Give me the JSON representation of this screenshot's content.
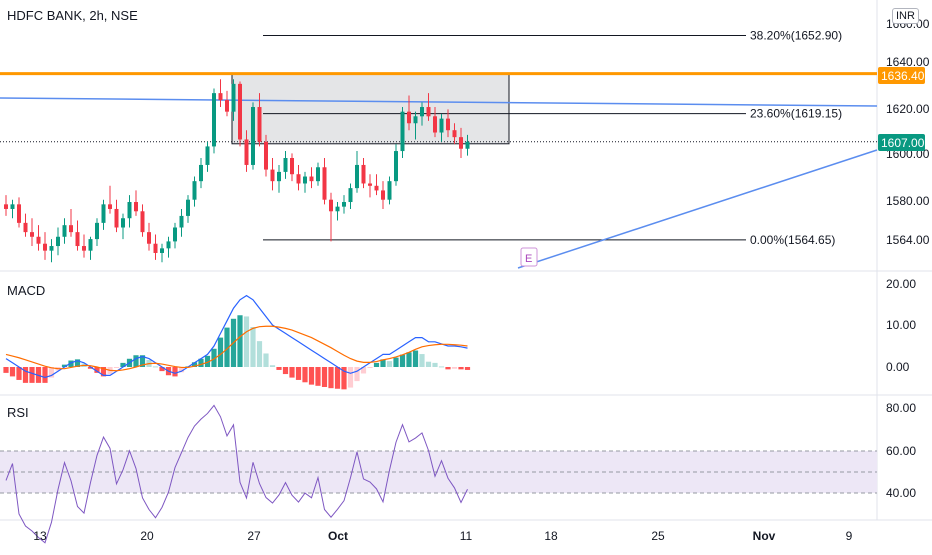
{
  "header": {
    "symbol_label": "HDFC BANK, 2h, NSE",
    "currency_badge": "INR"
  },
  "colors": {
    "up": "#089981",
    "down": "#f23645",
    "orange_line": "#ff9800",
    "trend_blue": "#5b8def",
    "macd_line": "#2962ff",
    "signal_line": "#ff6d00",
    "rsi_line": "#7e57c2",
    "rsi_band": "#ede7f6",
    "last_price_bg": "#089981"
  },
  "price_panel": {
    "y_ticks": [
      "1660.00",
      "1640.00",
      "1620.00",
      "1600.00",
      "1580.00",
      "1564.00"
    ],
    "last_price": "1607.00",
    "resistance_label": "1636.40",
    "fib_levels": [
      {
        "label": "38.20%(1652.90)",
        "value": 1652.9
      },
      {
        "label": "23.60%(1619.15)",
        "value": 1619.15
      },
      {
        "label": "0.00%(1564.65)",
        "value": 1564.65
      }
    ],
    "event_marker": "E"
  },
  "macd_panel": {
    "title": "MACD",
    "y_ticks": [
      "20.00",
      "10.00",
      "0.00"
    ]
  },
  "rsi_panel": {
    "title": "RSI",
    "y_ticks": [
      "80.00",
      "60.00",
      "40.00"
    ]
  },
  "x_axis": {
    "labels": [
      "13",
      "20",
      "27",
      "Oct",
      "11",
      "18",
      "25",
      "Nov",
      "9"
    ]
  },
  "chart_data": {
    "type": "candlestick",
    "title": "HDFC BANK, 2h, NSE",
    "ylim": [
      1555,
      1665
    ],
    "candles": [
      [
        1580,
        1584,
        1575,
        1578
      ],
      [
        1578,
        1582,
        1574,
        1580
      ],
      [
        1580,
        1583,
        1570,
        1572
      ],
      [
        1572,
        1576,
        1566,
        1568
      ],
      [
        1568,
        1574,
        1562,
        1566
      ],
      [
        1566,
        1571,
        1560,
        1563
      ],
      [
        1563,
        1568,
        1556,
        1560
      ],
      [
        1560,
        1565,
        1555,
        1562
      ],
      [
        1562,
        1570,
        1558,
        1566
      ],
      [
        1566,
        1574,
        1563,
        1571
      ],
      [
        1571,
        1578,
        1566,
        1568
      ],
      [
        1568,
        1573,
        1560,
        1562
      ],
      [
        1562,
        1567,
        1557,
        1560
      ],
      [
        1560,
        1566,
        1556,
        1565
      ],
      [
        1565,
        1574,
        1562,
        1572
      ],
      [
        1572,
        1582,
        1569,
        1580
      ],
      [
        1580,
        1588,
        1576,
        1578
      ],
      [
        1578,
        1582,
        1568,
        1570
      ],
      [
        1570,
        1576,
        1565,
        1574
      ],
      [
        1574,
        1584,
        1570,
        1581
      ],
      [
        1581,
        1586,
        1575,
        1577
      ],
      [
        1577,
        1580,
        1566,
        1568
      ],
      [
        1568,
        1572,
        1560,
        1563
      ],
      [
        1563,
        1567,
        1556,
        1559
      ],
      [
        1559,
        1563,
        1555,
        1561
      ],
      [
        1561,
        1566,
        1557,
        1564
      ],
      [
        1564,
        1572,
        1561,
        1570
      ],
      [
        1570,
        1578,
        1566,
        1575
      ],
      [
        1575,
        1584,
        1572,
        1582
      ],
      [
        1582,
        1592,
        1579,
        1590
      ],
      [
        1590,
        1600,
        1587,
        1597
      ],
      [
        1597,
        1607,
        1594,
        1605
      ],
      [
        1605,
        1630,
        1602,
        1628
      ],
      [
        1628,
        1634,
        1622,
        1625
      ],
      [
        1625,
        1629,
        1618,
        1620
      ],
      [
        1620,
        1634,
        1616,
        1632
      ],
      [
        1632,
        1633,
        1605,
        1608
      ],
      [
        1608,
        1612,
        1594,
        1597
      ],
      [
        1597,
        1624,
        1595,
        1622
      ],
      [
        1622,
        1628,
        1605,
        1607
      ],
      [
        1607,
        1610,
        1592,
        1595
      ],
      [
        1595,
        1600,
        1586,
        1590
      ],
      [
        1590,
        1597,
        1585,
        1594
      ],
      [
        1594,
        1603,
        1591,
        1600
      ],
      [
        1600,
        1602,
        1590,
        1593
      ],
      [
        1593,
        1597,
        1586,
        1589
      ],
      [
        1589,
        1594,
        1585,
        1592
      ],
      [
        1592,
        1596,
        1587,
        1590
      ],
      [
        1590,
        1598,
        1588,
        1596
      ],
      [
        1596,
        1600,
        1580,
        1582
      ],
      [
        1582,
        1585,
        1564,
        1577
      ],
      [
        1577,
        1581,
        1573,
        1579
      ],
      [
        1579,
        1584,
        1576,
        1581
      ],
      [
        1581,
        1589,
        1578,
        1587
      ],
      [
        1587,
        1603,
        1585,
        1597
      ],
      [
        1597,
        1600,
        1587,
        1589
      ],
      [
        1589,
        1593,
        1583,
        1588
      ],
      [
        1588,
        1593,
        1584,
        1586
      ],
      [
        1586,
        1590,
        1578,
        1582
      ],
      [
        1582,
        1592,
        1580,
        1590
      ],
      [
        1590,
        1606,
        1588,
        1603
      ],
      [
        1603,
        1622,
        1600,
        1620
      ],
      [
        1620,
        1627,
        1612,
        1615
      ],
      [
        1615,
        1620,
        1608,
        1618
      ],
      [
        1618,
        1624,
        1614,
        1622
      ],
      [
        1622,
        1628,
        1616,
        1618
      ],
      [
        1618,
        1622,
        1609,
        1611
      ],
      [
        1611,
        1619,
        1607,
        1617
      ],
      [
        1617,
        1621,
        1609,
        1612
      ],
      [
        1612,
        1615,
        1606,
        1609
      ],
      [
        1609,
        1613,
        1600,
        1604
      ],
      [
        1604,
        1610,
        1601,
        1607
      ]
    ],
    "resistance": 1636.4,
    "last_price": 1607.0,
    "macd": [
      2,
      1,
      0,
      -1,
      -1.5,
      -2,
      -2.5,
      -2,
      -1,
      0,
      1,
      1.5,
      1,
      0,
      -1,
      -2,
      -2,
      -1,
      0,
      1,
      2,
      2.5,
      2,
      1,
      0,
      -1,
      -1.5,
      -1,
      0,
      1,
      2,
      3,
      5,
      8,
      11,
      14,
      16,
      17,
      16,
      14,
      12,
      10,
      9,
      8,
      7,
      6,
      5,
      4,
      3,
      2,
      1,
      0,
      -1,
      -1.5,
      -1,
      0,
      1,
      2,
      3,
      3,
      4,
      5,
      6,
      7,
      7,
      6,
      6,
      5.5,
      5,
      5,
      4.8,
      4.5
    ],
    "signal": [
      3,
      2.6,
      2.2,
      1.7,
      1.2,
      0.7,
      0.2,
      -0.2,
      -0.4,
      -0.4,
      -0.1,
      0.2,
      0.4,
      0.3,
      0,
      -0.4,
      -0.8,
      -0.9,
      -0.7,
      -0.4,
      0,
      0.5,
      0.8,
      0.9,
      0.7,
      0.4,
      0.1,
      -0.1,
      -0.1,
      0.2,
      0.6,
      1.1,
      1.9,
      3,
      4.3,
      5.8,
      7.2,
      8.4,
      9.2,
      9.6,
      9.7,
      9.7,
      9.5,
      9.2,
      8.8,
      8.2,
      7.6,
      7,
      6.2,
      5.4,
      4.6,
      3.7,
      2.8,
      2,
      1.4,
      1.1,
      1.1,
      1.3,
      1.7,
      2,
      2.4,
      2.9,
      3.5,
      4.2,
      4.8,
      5.1,
      5.3,
      5.4,
      5.4,
      5.3,
      5.2,
      5
    ]
  }
}
